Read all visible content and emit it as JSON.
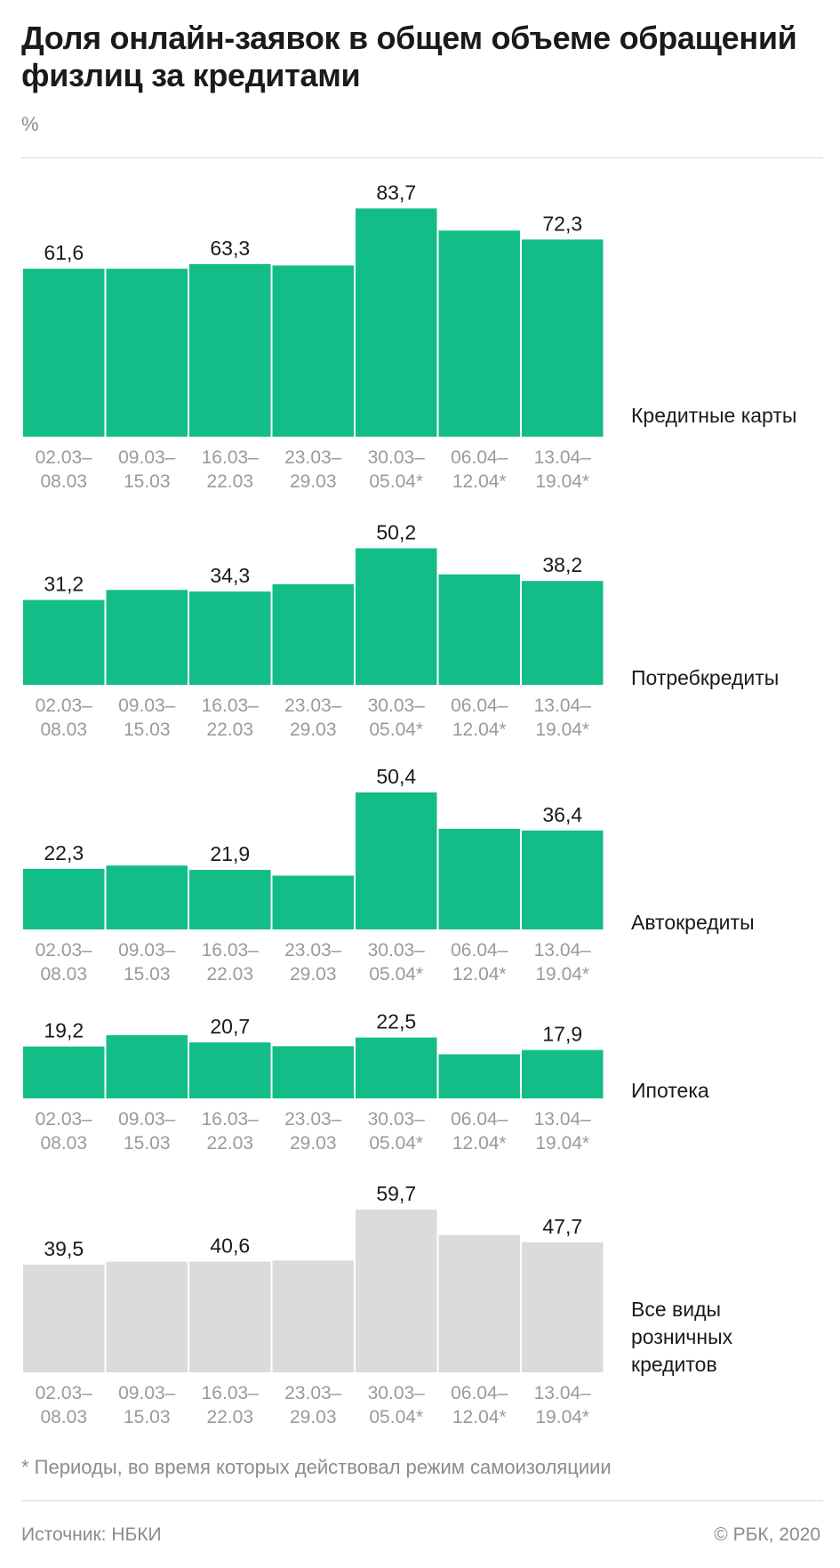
{
  "title": "Доля онлайн-заявок в общем объеме обращений физлиц за кредитами",
  "unit": "%",
  "footnote": "* Периоды, во время которых действовал режим самоизоляциии",
  "source": "Источник: НБКИ",
  "copyright": "© РБК, 2020",
  "colors": {
    "bar_main": "#13bd87",
    "bar_total": "#dbdbdb",
    "tick": "#9a9a9a"
  },
  "chart_data": [
    {
      "type": "bar",
      "name": "Кредитные карты",
      "categories": [
        "02.03–08.03",
        "09.03–15.03",
        "16.03–22.03",
        "23.03–29.03",
        "30.03–05.04*",
        "06.04–12.04*",
        "13.04–19.04*"
      ],
      "values": [
        61.6,
        61.6,
        63.3,
        62.8,
        83.7,
        75.6,
        72.3
      ],
      "labels": [
        "61,6",
        "",
        "63,3",
        "",
        "83,7",
        "",
        "72,3"
      ],
      "color": "#13bd87"
    },
    {
      "type": "bar",
      "name": "Потребкредиты",
      "categories": [
        "02.03–08.03",
        "09.03–15.03",
        "16.03–22.03",
        "23.03–29.03",
        "30.03–05.04*",
        "06.04–12.04*",
        "13.04–19.04*"
      ],
      "values": [
        31.2,
        34.9,
        34.3,
        37.0,
        50.2,
        40.6,
        38.2
      ],
      "labels": [
        "31,2",
        "",
        "34,3",
        "",
        "50,2",
        "",
        "38,2"
      ],
      "color": "#13bd87"
    },
    {
      "type": "bar",
      "name": "Автокредиты",
      "categories": [
        "02.03–08.03",
        "09.03–15.03",
        "16.03–22.03",
        "23.03–29.03",
        "30.03–05.04*",
        "06.04–12.04*",
        "13.04–19.04*"
      ],
      "values": [
        22.3,
        23.5,
        21.9,
        19.8,
        50.4,
        37.0,
        36.4
      ],
      "labels": [
        "22,3",
        "",
        "21,9",
        "",
        "50,4",
        "",
        "36,4"
      ],
      "color": "#13bd87"
    },
    {
      "type": "bar",
      "name": "Ипотека",
      "categories": [
        "02.03–08.03",
        "09.03–15.03",
        "16.03–22.03",
        "23.03–29.03",
        "30.03–05.04*",
        "06.04–12.04*",
        "13.04–19.04*"
      ],
      "values": [
        19.2,
        23.4,
        20.7,
        19.3,
        22.5,
        16.3,
        17.9
      ],
      "labels": [
        "19,2",
        "",
        "20,7",
        "",
        "22,5",
        "",
        "17,9"
      ],
      "color": "#13bd87"
    },
    {
      "type": "bar",
      "name": "Все виды розничных кредитов",
      "categories": [
        "02.03–08.03",
        "09.03–15.03",
        "16.03–22.03",
        "23.03–29.03",
        "30.03–05.04*",
        "06.04–12.04*",
        "13.04–19.04*"
      ],
      "values": [
        39.5,
        40.6,
        40.6,
        41.0,
        59.7,
        50.4,
        47.7
      ],
      "labels": [
        "39,5",
        "",
        "40,6",
        "",
        "59,7",
        "",
        "47,7"
      ],
      "color": "#dbdbdb"
    }
  ]
}
